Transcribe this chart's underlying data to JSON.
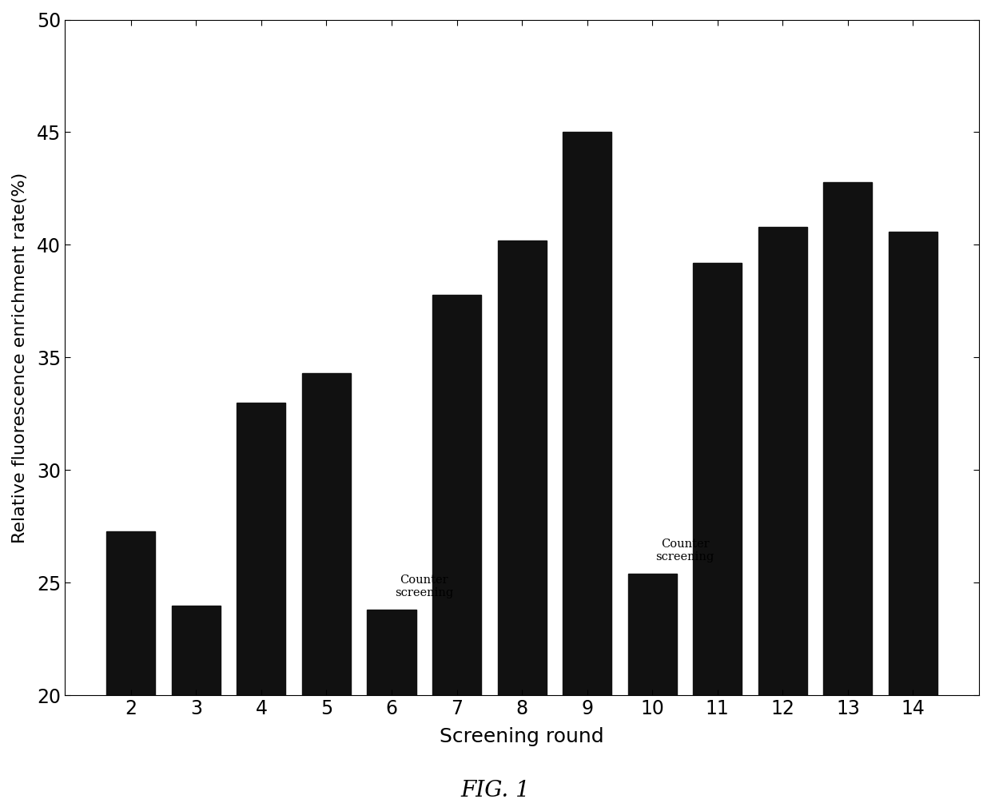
{
  "categories": [
    2,
    3,
    4,
    5,
    6,
    7,
    8,
    9,
    10,
    11,
    12,
    13,
    14
  ],
  "values": [
    27.3,
    24.0,
    33.0,
    34.3,
    23.8,
    37.8,
    40.2,
    45.0,
    25.4,
    39.2,
    40.8,
    42.8,
    40.6
  ],
  "bar_color": "#111111",
  "xlabel": "Screening round",
  "ylabel": "Relative fluorescence enrichment rate(%)",
  "ylim": [
    20,
    50
  ],
  "yticks": [
    20,
    25,
    30,
    35,
    40,
    45,
    50
  ],
  "title": "FIG. 1",
  "annotation_6": "Counter\nscreening",
  "annotation_10": "Counter\nscreening",
  "background_color": "#ffffff",
  "fig_bg_color": "#ffffff",
  "bar_width": 0.75
}
